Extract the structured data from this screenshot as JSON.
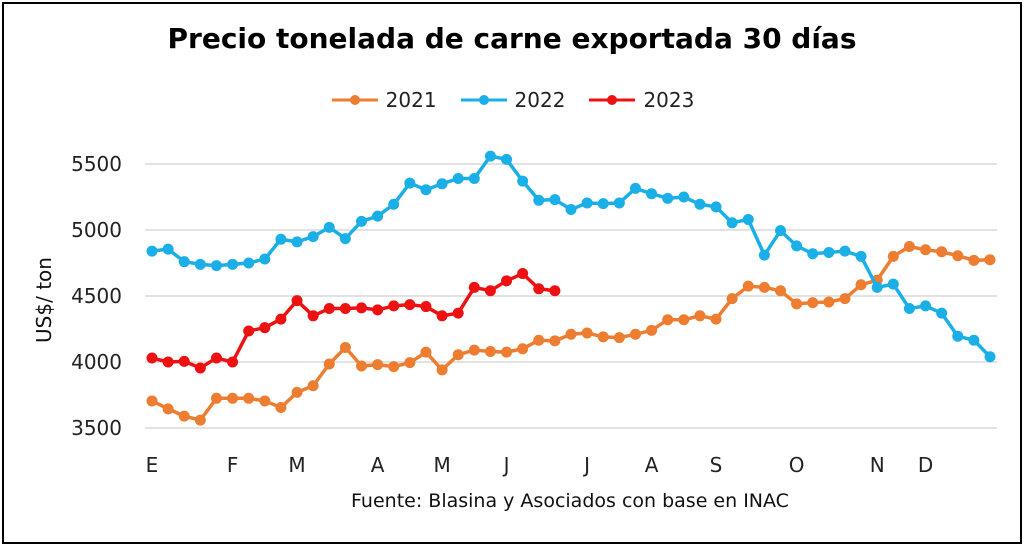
{
  "chart_data": {
    "type": "line",
    "title": "Precio tonelada de carne exportada 30 días",
    "xlabel": "",
    "ylabel": "US$/ ton",
    "ylim": [
      3500,
      5500
    ],
    "yticks": [
      3500,
      4000,
      4500,
      5000,
      5500
    ],
    "grid": true,
    "legend_position": "top",
    "x_tick_labels": [
      {
        "label": "E",
        "week": 0
      },
      {
        "label": "F",
        "week": 5
      },
      {
        "label": "M",
        "week": 9
      },
      {
        "label": "A",
        "week": 14
      },
      {
        "label": "M",
        "week": 18
      },
      {
        "label": "J",
        "week": 22
      },
      {
        "label": "J",
        "week": 27
      },
      {
        "label": "A",
        "week": 31
      },
      {
        "label": "S",
        "week": 35
      },
      {
        "label": "O",
        "week": 40
      },
      {
        "label": "N",
        "week": 45
      },
      {
        "label": "D",
        "week": 48
      }
    ],
    "x_count": 53,
    "series": [
      {
        "name": "2021",
        "color": "#ED7D31",
        "values": [
          3705,
          3645,
          3590,
          3560,
          3725,
          3725,
          3725,
          3705,
          3655,
          3770,
          3820,
          3985,
          4110,
          3970,
          3980,
          3965,
          3995,
          4075,
          3940,
          4055,
          4090,
          4080,
          4075,
          4100,
          4165,
          4160,
          4210,
          4220,
          4190,
          4185,
          4210,
          4240,
          4320,
          4320,
          4350,
          4325,
          4480,
          4575,
          4565,
          4540,
          4440,
          4450,
          4455,
          4480,
          4585,
          4620,
          4800,
          4875,
          4850,
          4835,
          4805,
          4770,
          4775
        ]
      },
      {
        "name": "2022",
        "color": "#1AAFE6",
        "values": [
          4840,
          4855,
          4760,
          4740,
          4730,
          4740,
          4750,
          4780,
          4930,
          4910,
          4950,
          5020,
          4935,
          5065,
          5105,
          5195,
          5355,
          5305,
          5350,
          5390,
          5390,
          5560,
          5535,
          5370,
          5225,
          5230,
          5155,
          5205,
          5200,
          5205,
          5315,
          5275,
          5240,
          5250,
          5195,
          5175,
          5055,
          5080,
          4810,
          4995,
          4880,
          4820,
          4830,
          4840,
          4800,
          4565,
          4590,
          4405,
          4425,
          4370,
          4195,
          4165,
          4040
        ]
      },
      {
        "name": "2023",
        "color": "#EE1111",
        "values": [
          4030,
          4000,
          4005,
          3955,
          4030,
          4000,
          4235,
          4260,
          4325,
          4465,
          4350,
          4405,
          4405,
          4410,
          4395,
          4425,
          4435,
          4420,
          4350,
          4370,
          4565,
          4540,
          4615,
          4670,
          4555,
          4540
        ]
      }
    ]
  },
  "source": "Fuente: Blasina y Asociados con base en INAC"
}
